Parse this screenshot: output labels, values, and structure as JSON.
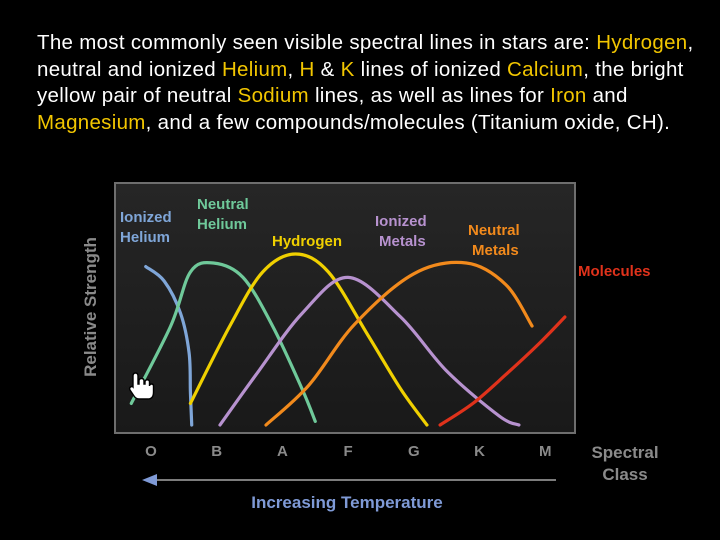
{
  "caption": {
    "t1": "The most commonly seen visible spectral lines in stars are:",
    "hydrogen": "Hydrogen",
    "t2": ", neutral and ionized",
    "helium": "Helium",
    "t3": ",",
    "h": "H",
    "t4": "&",
    "k": "K",
    "t5": "lines of ionized",
    "calcium": "Calcium",
    "t6": ", the bright yellow pair of neutral",
    "sodium": "Sodium",
    "t7": "lines, as well as lines for",
    "iron": "Iron",
    "t8": "and",
    "magnesium": "Magnesium",
    "t9": ", and a few compounds/molecules (Titanium oxide, CH)."
  },
  "colors": {
    "background": "#000000",
    "plot_background": "#1f1f1f",
    "plot_border": "#6e6e6e",
    "highlight": "#f2c600",
    "axis_text": "#8a8a8a",
    "temperature_label": "#7f9ad6"
  },
  "chart_data": {
    "type": "line",
    "ylabel": "Relative Strength",
    "xlabel": "Spectral Class",
    "categories": [
      "O",
      "B",
      "A",
      "F",
      "G",
      "K",
      "M"
    ],
    "ylim": [
      0,
      1
    ],
    "arrow_label": "Increasing Temperature",
    "series": [
      {
        "name": "Ionized Helium",
        "color": "#7fa6d8",
        "points": [
          [
            -0.08,
            0.88
          ],
          [
            0.2,
            0.8
          ],
          [
            0.45,
            0.62
          ],
          [
            0.58,
            0.4
          ],
          [
            0.6,
            0.18
          ],
          [
            0.62,
            0.0
          ]
        ]
      },
      {
        "name": "Neutral Helium",
        "color": "#6fc99a",
        "points": [
          [
            -0.3,
            0.12
          ],
          [
            0.3,
            0.55
          ],
          [
            0.6,
            0.85
          ],
          [
            0.95,
            0.9
          ],
          [
            1.4,
            0.82
          ],
          [
            1.85,
            0.55
          ],
          [
            2.3,
            0.2
          ],
          [
            2.5,
            0.02
          ]
        ]
      },
      {
        "name": "Hydrogen",
        "color": "#f0d000",
        "points": [
          [
            0.6,
            0.12
          ],
          [
            1.2,
            0.55
          ],
          [
            1.7,
            0.85
          ],
          [
            2.2,
            0.95
          ],
          [
            2.7,
            0.85
          ],
          [
            3.3,
            0.5
          ],
          [
            3.8,
            0.2
          ],
          [
            4.2,
            0.0
          ]
        ]
      },
      {
        "name": "Ionized Metals",
        "color": "#b792cf",
        "points": [
          [
            1.05,
            0.0
          ],
          [
            1.6,
            0.28
          ],
          [
            2.3,
            0.62
          ],
          [
            3.0,
            0.82
          ],
          [
            3.8,
            0.6
          ],
          [
            4.5,
            0.3
          ],
          [
            5.3,
            0.05
          ],
          [
            5.6,
            0.0
          ]
        ]
      },
      {
        "name": "Neutral Metals",
        "color": "#f28a1c",
        "points": [
          [
            1.75,
            0.0
          ],
          [
            2.4,
            0.22
          ],
          [
            3.1,
            0.56
          ],
          [
            4.0,
            0.84
          ],
          [
            4.8,
            0.9
          ],
          [
            5.4,
            0.78
          ],
          [
            5.8,
            0.55
          ]
        ]
      },
      {
        "name": "Molecules",
        "color": "#e0321b",
        "points": [
          [
            4.4,
            0.0
          ],
          [
            4.9,
            0.12
          ],
          [
            5.4,
            0.28
          ],
          [
            5.9,
            0.45
          ],
          [
            6.3,
            0.6
          ]
        ]
      }
    ]
  },
  "cursor": {
    "name": "hand-pointer"
  }
}
